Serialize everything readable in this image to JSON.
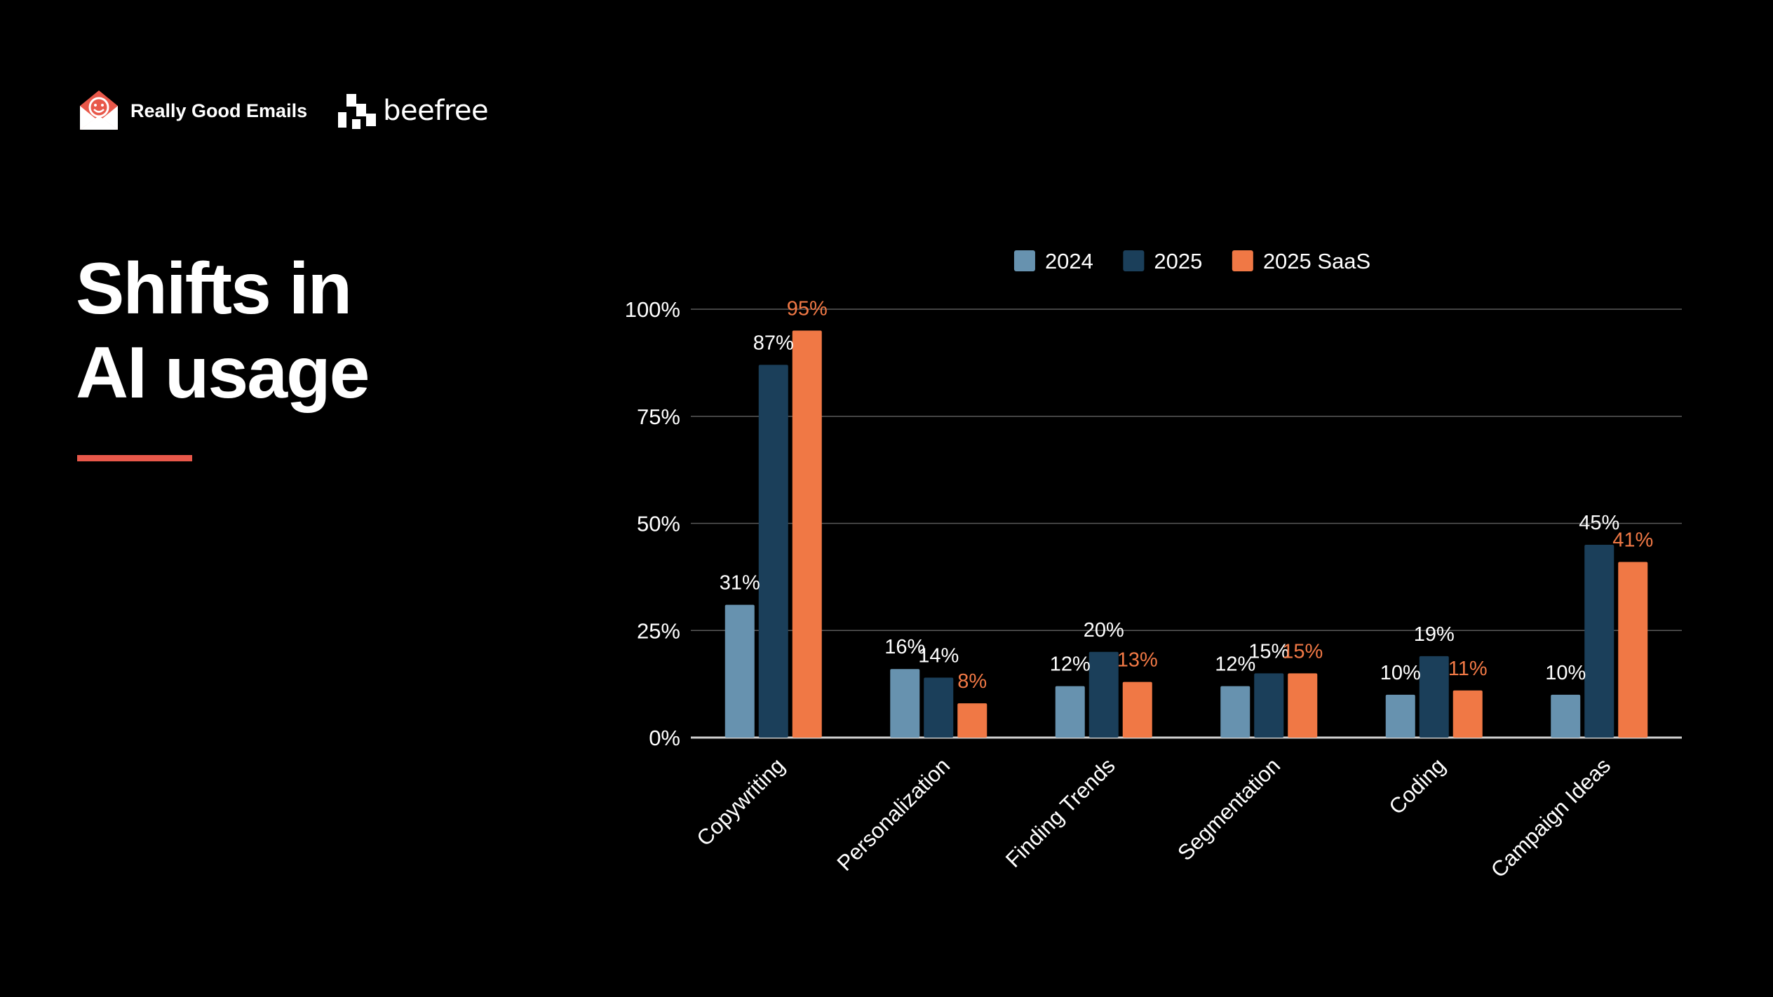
{
  "brands": {
    "really_good_emails": "Really Good Emails",
    "beefree": "beefree"
  },
  "headline": {
    "line1": "Shifts in",
    "line2": "AI usage"
  },
  "colors": {
    "background": "#000000",
    "accent": "#e8584a",
    "series_2024": "#6792af",
    "series_2025": "#1b3f5a",
    "series_2025_saas": "#f07845",
    "grid": "#5a5a5a",
    "axis": "#d0d0d0"
  },
  "chart_data": {
    "type": "bar",
    "categories": [
      "Copywriting",
      "Personalization",
      "Finding Trends",
      "Segmentation",
      "Coding",
      "Campaign Ideas"
    ],
    "series": [
      {
        "name": "2024",
        "color": "#6792af",
        "label_color": "#ffffff",
        "values": [
          31,
          16,
          12,
          12,
          10,
          10
        ]
      },
      {
        "name": "2025",
        "color": "#1b3f5a",
        "label_color": "#ffffff",
        "values": [
          87,
          14,
          20,
          15,
          19,
          45
        ]
      },
      {
        "name": "2025 SaaS",
        "color": "#f07845",
        "label_color": "#f07845",
        "values": [
          95,
          8,
          13,
          15,
          11,
          41
        ]
      }
    ],
    "y_ticks": [
      0,
      25,
      50,
      75,
      100
    ],
    "y_tick_labels": [
      "0%",
      "25%",
      "50%",
      "75%",
      "100%"
    ],
    "ylim": [
      0,
      100
    ],
    "value_suffix": "%",
    "grid": true,
    "legend_position": "top"
  }
}
